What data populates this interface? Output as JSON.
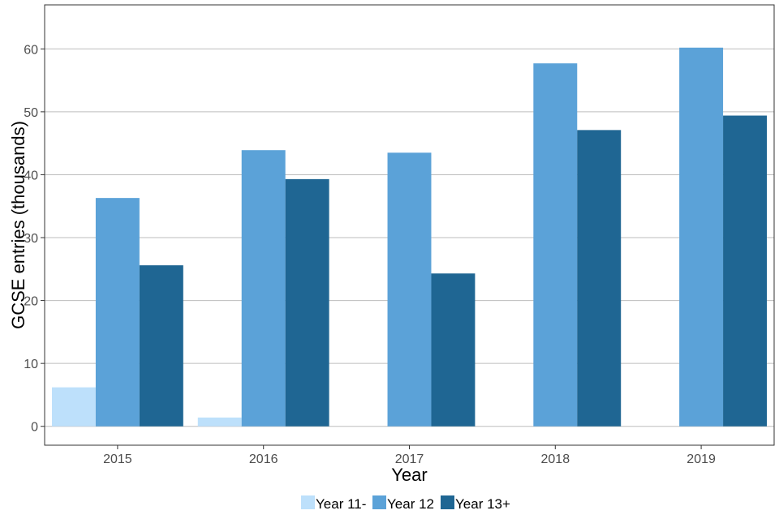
{
  "chart_data": {
    "type": "bar",
    "title": "",
    "xlabel": "Year",
    "ylabel": "GCSE entries (thousands)",
    "categories": [
      "2015",
      "2016",
      "2017",
      "2018",
      "2019"
    ],
    "series": [
      {
        "name": "Year 11-",
        "color": "#bde0fb",
        "values": [
          6.2,
          1.4,
          0,
          0,
          0
        ]
      },
      {
        "name": "Year 12",
        "color": "#5ba2d8",
        "values": [
          36.3,
          43.9,
          43.5,
          57.7,
          60.2
        ]
      },
      {
        "name": "Year 13+",
        "color": "#1f6693",
        "values": [
          25.6,
          39.3,
          24.3,
          47.1,
          49.4
        ]
      }
    ],
    "ylim": [
      -3,
      67
    ],
    "yticks": [
      0,
      10,
      20,
      30,
      40,
      50,
      60
    ],
    "grid": "horizontal",
    "legend_position": "bottom"
  }
}
